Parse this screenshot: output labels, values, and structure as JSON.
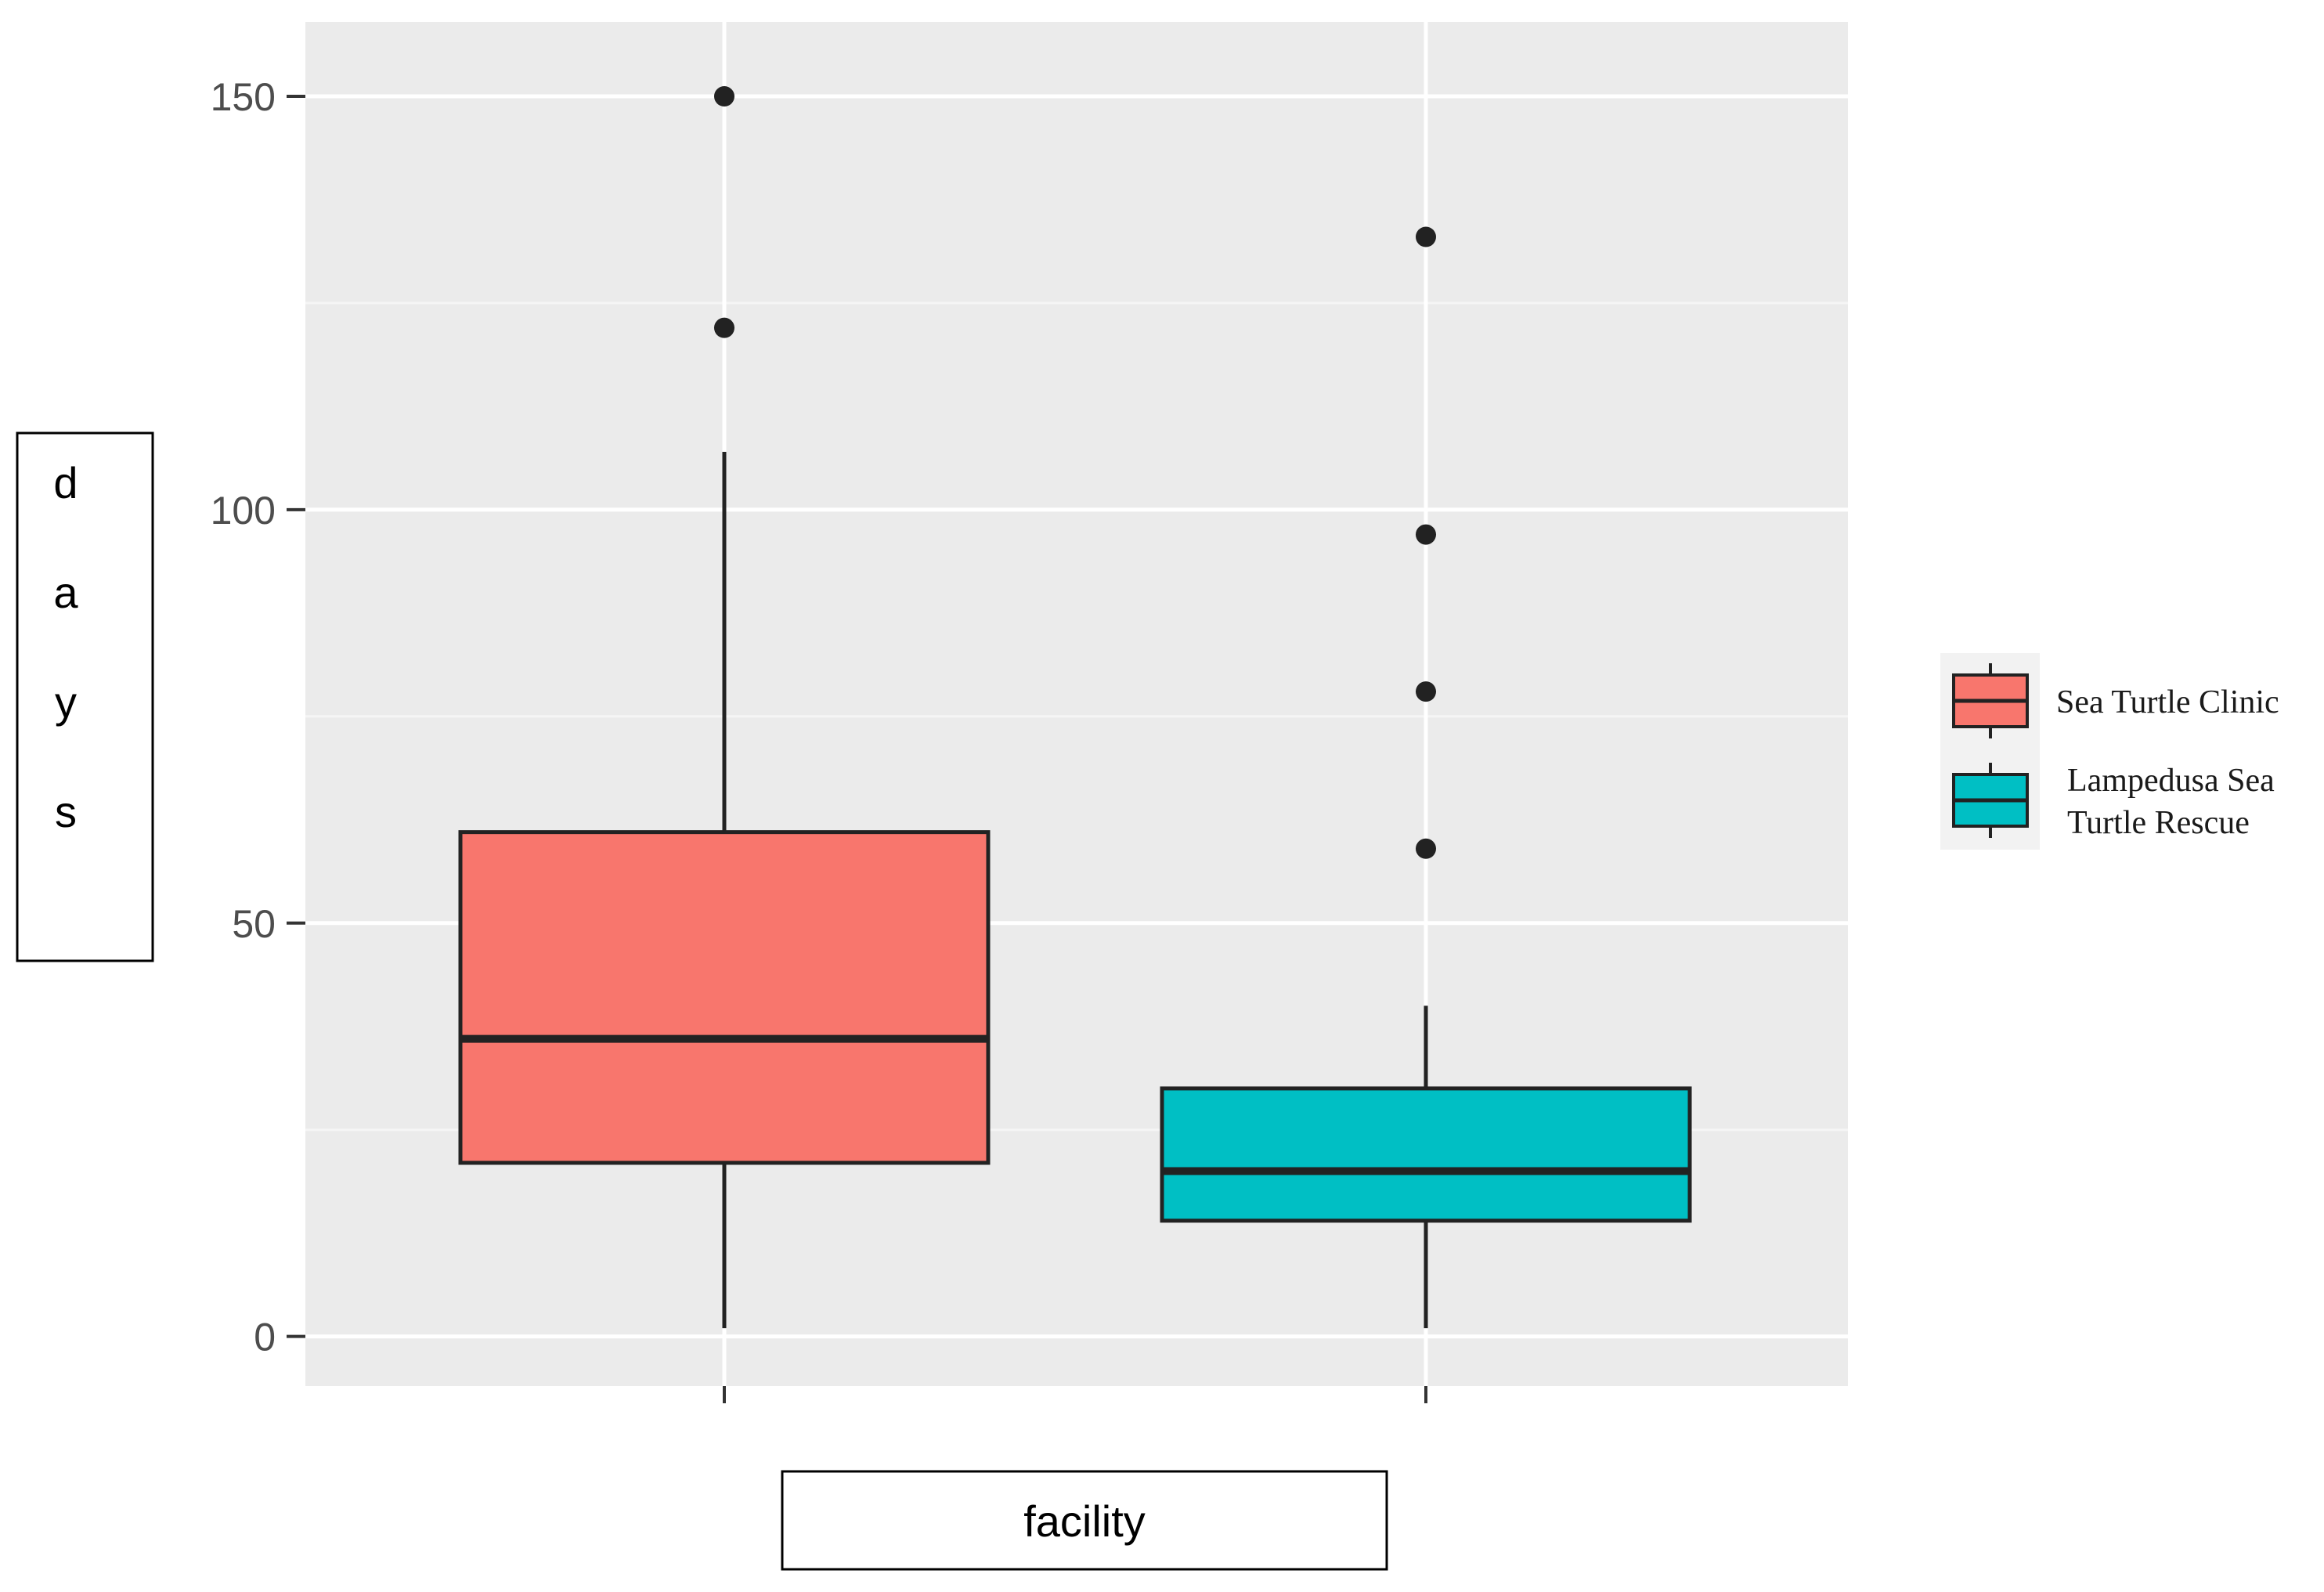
{
  "chart_data": {
    "type": "boxplot",
    "title": "",
    "xlabel": "facility",
    "ylabel": "days",
    "ylim": [
      -6,
      159
    ],
    "yticks": [
      0,
      50,
      100,
      150
    ],
    "grid": true,
    "legend_position": "right",
    "series": [
      {
        "name": "Sea Turtle Clinic",
        "color": "#F8766D",
        "min": 1,
        "q1": 21,
        "median": 36,
        "q3": 61,
        "max": 107,
        "outliers": [
          122,
          150
        ]
      },
      {
        "name": "Lampedusa Sea Turtle Rescue",
        "color": "#00BFC4",
        "min": 1,
        "q1": 14,
        "median": 20,
        "q3": 30,
        "max": 40,
        "outliers": [
          59,
          78,
          97,
          133
        ]
      }
    ],
    "legend_labels": [
      [
        "Sea Turtle Clinic"
      ],
      [
        "Lampedusa Sea",
        "Turtle Rescue"
      ]
    ]
  }
}
